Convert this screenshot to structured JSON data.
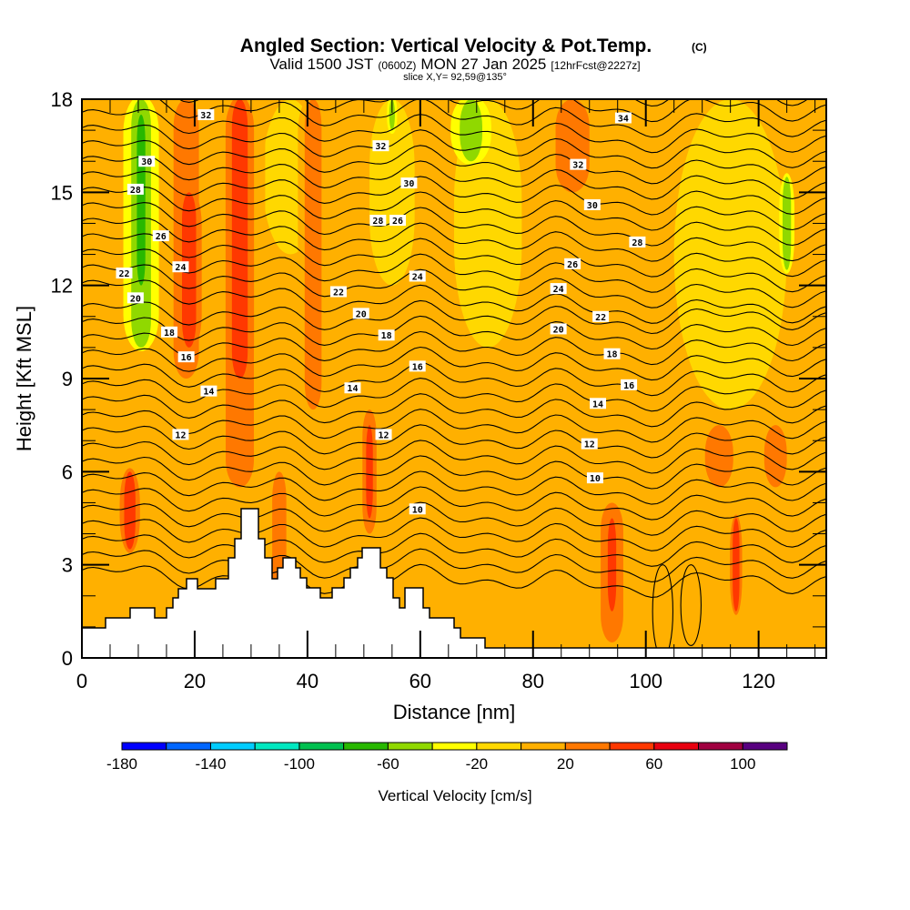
{
  "header": {
    "title": "Angled Section: Vertical Velocity & Pot.Temp.",
    "title_suffix": "(C)",
    "valid_prefix": "Valid 1500 JST",
    "valid_utc": "(0600Z)",
    "valid_date": "MON 27 Jan 2025",
    "forecast": "[12hrFcst@2227z]",
    "slice": "slice X,Y= 92,59@135°"
  },
  "chart_data": {
    "type": "heatmap",
    "title": "Angled Section: Vertical Velocity & Pot.Temp.",
    "xlabel": "Distance [nm]",
    "ylabel": "Height [Kft MSL]",
    "xlim": [
      0,
      132
    ],
    "ylim": [
      0,
      18
    ],
    "x_ticks": [
      0,
      20,
      40,
      60,
      80,
      100,
      120
    ],
    "x_tick_labels": [
      "0",
      "20",
      "40",
      "60",
      "80",
      "100",
      "120"
    ],
    "y_ticks": [
      0,
      3,
      6,
      9,
      12,
      15,
      18
    ],
    "y_tick_labels": [
      "0",
      "3",
      "6",
      "9",
      "12",
      "15",
      "18"
    ],
    "fill_variable": "Vertical Velocity",
    "fill_units": "cm/s",
    "colorbar": {
      "label": "Vertical Velocity [cm/s]",
      "levels": [
        -180,
        -160,
        -140,
        -120,
        -100,
        -80,
        -60,
        -40,
        -20,
        0,
        20,
        40,
        60,
        80,
        100,
        120
      ],
      "tick_values": [
        -180,
        -140,
        -100,
        -60,
        -20,
        20,
        60,
        100
      ],
      "tick_labels": [
        "-180",
        "-140",
        "-100",
        "-60",
        "-20",
        "20",
        "60",
        "100"
      ],
      "colors": [
        "#0000ff",
        "#0066ff",
        "#00ccff",
        "#00e8c0",
        "#00c050",
        "#28b800",
        "#90d800",
        "#ffff00",
        "#ffd800",
        "#ffb000",
        "#ff7800",
        "#ff3800",
        "#e80010",
        "#a00040",
        "#580080"
      ]
    },
    "background_value": 10,
    "plumes": [
      {
        "x": 10.5,
        "y0": 10,
        "y1": 18,
        "w": 3.5,
        "value": -50
      },
      {
        "x": 10.5,
        "y0": 12,
        "y1": 17.5,
        "w": 1.5,
        "value": -70
      },
      {
        "x": 18.5,
        "y0": 9,
        "y1": 18,
        "w": 4.5,
        "value": 30
      },
      {
        "x": 19,
        "y0": 10,
        "y1": 15,
        "w": 2.5,
        "value": 50
      },
      {
        "x": 28,
        "y0": 5.5,
        "y1": 18,
        "w": 5,
        "value": 30
      },
      {
        "x": 28,
        "y0": 9,
        "y1": 18,
        "w": 2.8,
        "value": 50
      },
      {
        "x": 41,
        "y0": 8,
        "y1": 18,
        "w": 3,
        "value": 25
      },
      {
        "x": 51,
        "y0": 4,
        "y1": 8,
        "w": 2.5,
        "value": 30
      },
      {
        "x": 51,
        "y0": 4.5,
        "y1": 7.5,
        "w": 1.2,
        "value": 50
      },
      {
        "x": 69,
        "y0": 16,
        "y1": 18,
        "w": 4,
        "value": -50
      },
      {
        "x": 55,
        "y0": 17,
        "y1": 18,
        "w": 1,
        "value": -50
      },
      {
        "x": 87,
        "y0": 15,
        "y1": 18,
        "w": 6,
        "value": 30
      },
      {
        "x": 94,
        "y0": 0.5,
        "y1": 5,
        "w": 4,
        "value": 30
      },
      {
        "x": 94,
        "y0": 1.5,
        "y1": 4.5,
        "w": 1.5,
        "value": 50
      },
      {
        "x": 116,
        "y0": 1.5,
        "y1": 4.5,
        "w": 1.2,
        "value": 50
      },
      {
        "x": 113,
        "y0": 5.5,
        "y1": 7.5,
        "w": 5,
        "value": 30
      },
      {
        "x": 123,
        "y0": 5.5,
        "y1": 7.5,
        "w": 4,
        "value": 30
      },
      {
        "x": 125,
        "y0": 12.5,
        "y1": 15.5,
        "w": 1.5,
        "value": -50
      },
      {
        "x": 8.5,
        "y0": 3.5,
        "y1": 6,
        "w": 2,
        "value": 50
      },
      {
        "x": 35,
        "y0": 2,
        "y1": 6,
        "w": 2.5,
        "value": 30
      }
    ],
    "cool_regions": [
      {
        "x": 72,
        "y0": 10,
        "y1": 18,
        "w": 12,
        "value": -10
      },
      {
        "x": 115,
        "y0": 8,
        "y1": 18,
        "w": 20,
        "value": -10
      },
      {
        "x": 37,
        "y0": 13,
        "y1": 18,
        "w": 10,
        "value": -10
      },
      {
        "x": 55,
        "y0": 12,
        "y1": 18,
        "w": 8,
        "value": -10
      }
    ],
    "warm_regions": [
      {
        "x": 6,
        "y0": 5,
        "y1": 18,
        "w": 14,
        "value": 10
      },
      {
        "x": 90,
        "y0": 0.5,
        "y1": 18,
        "w": 22,
        "value": 10
      },
      {
        "x": 20,
        "y0": 0.5,
        "y1": 9,
        "w": 14,
        "value": 10
      }
    ],
    "contour_variable": "Potential Temperature",
    "contour_units": "C",
    "contour_levels": [
      10,
      12,
      14,
      16,
      18,
      20,
      22,
      24,
      26,
      28,
      30,
      32,
      34
    ],
    "contour_labels": [
      {
        "text": "32",
        "x": 22,
        "y": 17.5
      },
      {
        "text": "30",
        "x": 11.5,
        "y": 16.0
      },
      {
        "text": "28",
        "x": 9.5,
        "y": 15.1
      },
      {
        "text": "26",
        "x": 14,
        "y": 13.6
      },
      {
        "text": "24",
        "x": 17.5,
        "y": 12.6
      },
      {
        "text": "22",
        "x": 7.5,
        "y": 12.4
      },
      {
        "text": "20",
        "x": 9.5,
        "y": 11.6
      },
      {
        "text": "18",
        "x": 15.5,
        "y": 10.5
      },
      {
        "text": "16",
        "x": 18.5,
        "y": 9.7
      },
      {
        "text": "14",
        "x": 22.5,
        "y": 8.6
      },
      {
        "text": "12",
        "x": 17.5,
        "y": 7.2
      },
      {
        "text": "32",
        "x": 53,
        "y": 16.5
      },
      {
        "text": "30",
        "x": 58,
        "y": 15.3
      },
      {
        "text": "28",
        "x": 52.5,
        "y": 14.1
      },
      {
        "text": "26",
        "x": 56,
        "y": 14.1
      },
      {
        "text": "24",
        "x": 59.5,
        "y": 12.3
      },
      {
        "text": "22",
        "x": 45.5,
        "y": 11.8
      },
      {
        "text": "20",
        "x": 49.5,
        "y": 11.1
      },
      {
        "text": "18",
        "x": 54,
        "y": 10.4
      },
      {
        "text": "16",
        "x": 59.5,
        "y": 9.4
      },
      {
        "text": "14",
        "x": 48,
        "y": 8.7
      },
      {
        "text": "12",
        "x": 53.5,
        "y": 7.2
      },
      {
        "text": "10",
        "x": 59.5,
        "y": 4.8
      },
      {
        "text": "34",
        "x": 96,
        "y": 17.4
      },
      {
        "text": "32",
        "x": 88,
        "y": 15.9
      },
      {
        "text": "30",
        "x": 90.5,
        "y": 14.6
      },
      {
        "text": "28",
        "x": 98.5,
        "y": 13.4
      },
      {
        "text": "26",
        "x": 87,
        "y": 12.7
      },
      {
        "text": "24",
        "x": 84.5,
        "y": 11.9
      },
      {
        "text": "22",
        "x": 92,
        "y": 11.0
      },
      {
        "text": "20",
        "x": 84.5,
        "y": 10.6
      },
      {
        "text": "18",
        "x": 94,
        "y": 9.8
      },
      {
        "text": "16",
        "x": 97,
        "y": 8.8
      },
      {
        "text": "14",
        "x": 91.5,
        "y": 8.2
      },
      {
        "text": "12",
        "x": 90,
        "y": 6.9
      },
      {
        "text": "10",
        "x": 91,
        "y": 5.8
      }
    ],
    "terrain_label": "terrain (blank)",
    "grid": false
  }
}
